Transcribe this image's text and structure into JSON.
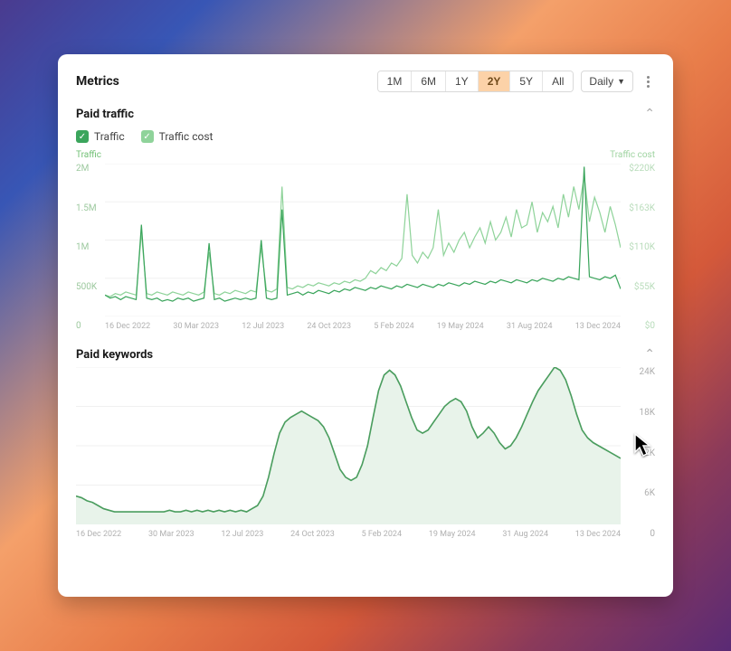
{
  "header": {
    "title": "Metrics",
    "ranges": [
      "1M",
      "6M",
      "1Y",
      "2Y",
      "5Y",
      "All"
    ],
    "active_range": "2Y",
    "granularity": "Daily"
  },
  "paid_traffic": {
    "title": "Paid traffic",
    "legend": [
      {
        "label": "Traffic",
        "checked": true,
        "color": "#3ba55c"
      },
      {
        "label": "Traffic cost",
        "checked": true,
        "color": "#8fd39a"
      }
    ],
    "y_left": {
      "label": "Traffic",
      "label_color": "#6fbf73",
      "ticks": [
        "2M",
        "1.5M",
        "1M",
        "500K",
        "0"
      ],
      "range": [
        0,
        2000000
      ]
    },
    "y_right": {
      "label": "Traffic cost",
      "label_color": "#9ed3a0",
      "ticks": [
        "$220K",
        "$163K",
        "$110K",
        "$55K",
        "$0"
      ],
      "range": [
        0,
        220000
      ]
    },
    "x_labels": [
      "16 Dec 2022",
      "30 Mar 2023",
      "12 Jul 2023",
      "24 Oct 2023",
      "5 Feb 2024",
      "19 May 2024",
      "31 Aug 2024",
      "13 Dec 2024"
    ],
    "series_traffic": {
      "color": "#3ba55c",
      "stroke_width": 1.2,
      "points": [
        0.14,
        0.12,
        0.13,
        0.11,
        0.13,
        0.12,
        0.11,
        0.6,
        0.12,
        0.11,
        0.12,
        0.1,
        0.11,
        0.1,
        0.12,
        0.11,
        0.12,
        0.1,
        0.11,
        0.12,
        0.48,
        0.11,
        0.12,
        0.1,
        0.11,
        0.12,
        0.11,
        0.12,
        0.11,
        0.12,
        0.5,
        0.12,
        0.11,
        0.12,
        0.7,
        0.14,
        0.15,
        0.16,
        0.14,
        0.16,
        0.15,
        0.17,
        0.16,
        0.15,
        0.17,
        0.16,
        0.18,
        0.17,
        0.19,
        0.18,
        0.17,
        0.19,
        0.18,
        0.2,
        0.19,
        0.18,
        0.2,
        0.19,
        0.21,
        0.2,
        0.19,
        0.21,
        0.2,
        0.19,
        0.21,
        0.2,
        0.22,
        0.21,
        0.2,
        0.22,
        0.21,
        0.23,
        0.22,
        0.21,
        0.23,
        0.22,
        0.24,
        0.23,
        0.22,
        0.24,
        0.23,
        0.22,
        0.24,
        0.23,
        0.25,
        0.24,
        0.23,
        0.25,
        0.24,
        0.26,
        0.25,
        0.24,
        0.98,
        0.26,
        0.25,
        0.24,
        0.26,
        0.25,
        0.27,
        0.18
      ]
    },
    "series_cost": {
      "color": "#8fd39a",
      "stroke_width": 1.2,
      "points": [
        0.14,
        0.13,
        0.15,
        0.14,
        0.16,
        0.15,
        0.14,
        0.55,
        0.15,
        0.14,
        0.16,
        0.15,
        0.14,
        0.16,
        0.15,
        0.14,
        0.16,
        0.15,
        0.14,
        0.16,
        0.42,
        0.15,
        0.14,
        0.16,
        0.15,
        0.17,
        0.16,
        0.15,
        0.17,
        0.16,
        0.45,
        0.17,
        0.16,
        0.18,
        0.85,
        0.19,
        0.18,
        0.2,
        0.19,
        0.21,
        0.2,
        0.22,
        0.21,
        0.2,
        0.22,
        0.21,
        0.23,
        0.22,
        0.24,
        0.23,
        0.25,
        0.3,
        0.28,
        0.32,
        0.3,
        0.35,
        0.33,
        0.38,
        0.8,
        0.4,
        0.35,
        0.42,
        0.38,
        0.45,
        0.7,
        0.4,
        0.48,
        0.42,
        0.5,
        0.55,
        0.45,
        0.52,
        0.58,
        0.48,
        0.62,
        0.5,
        0.55,
        0.65,
        0.52,
        0.7,
        0.58,
        0.6,
        0.75,
        0.55,
        0.68,
        0.62,
        0.72,
        0.58,
        0.8,
        0.65,
        0.85,
        0.7,
        0.92,
        0.62,
        0.78,
        0.68,
        0.55,
        0.72,
        0.6,
        0.45
      ]
    }
  },
  "paid_keywords": {
    "title": "Paid keywords",
    "y_right": {
      "ticks": [
        "24K",
        "18K",
        "12K",
        "6K",
        "0"
      ],
      "range": [
        0,
        24000
      ]
    },
    "x_labels": [
      "16 Dec 2022",
      "30 Mar 2023",
      "12 Jul 2023",
      "24 Oct 2023",
      "5 Feb 2024",
      "19 May 2024",
      "31 Aug 2024",
      "13 Dec 2024"
    ],
    "series": {
      "color": "#4a9d5e",
      "fill_color": "#e8f3ea",
      "stroke_width": 1.6,
      "points": [
        0.18,
        0.17,
        0.15,
        0.14,
        0.12,
        0.1,
        0.09,
        0.08,
        0.08,
        0.08,
        0.08,
        0.08,
        0.08,
        0.08,
        0.08,
        0.08,
        0.08,
        0.09,
        0.08,
        0.08,
        0.09,
        0.08,
        0.09,
        0.08,
        0.09,
        0.08,
        0.09,
        0.08,
        0.09,
        0.08,
        0.09,
        0.08,
        0.1,
        0.12,
        0.18,
        0.3,
        0.45,
        0.58,
        0.65,
        0.68,
        0.7,
        0.72,
        0.7,
        0.68,
        0.66,
        0.62,
        0.55,
        0.45,
        0.35,
        0.3,
        0.28,
        0.3,
        0.38,
        0.5,
        0.68,
        0.85,
        0.95,
        0.98,
        0.95,
        0.88,
        0.78,
        0.68,
        0.6,
        0.58,
        0.6,
        0.65,
        0.7,
        0.75,
        0.78,
        0.8,
        0.78,
        0.72,
        0.62,
        0.55,
        0.58,
        0.62,
        0.58,
        0.52,
        0.48,
        0.5,
        0.55,
        0.62,
        0.7,
        0.78,
        0.85,
        0.9,
        0.95,
        1.0,
        0.98,
        0.92,
        0.82,
        0.7,
        0.6,
        0.55,
        0.52,
        0.5,
        0.48,
        0.46,
        0.44,
        0.42
      ]
    }
  },
  "colors": {
    "panel_bg": "#ffffff",
    "grid": "#f0f0f0",
    "tick_text": "#b0b0b0",
    "range_active_bg": "#fcd2a8"
  }
}
